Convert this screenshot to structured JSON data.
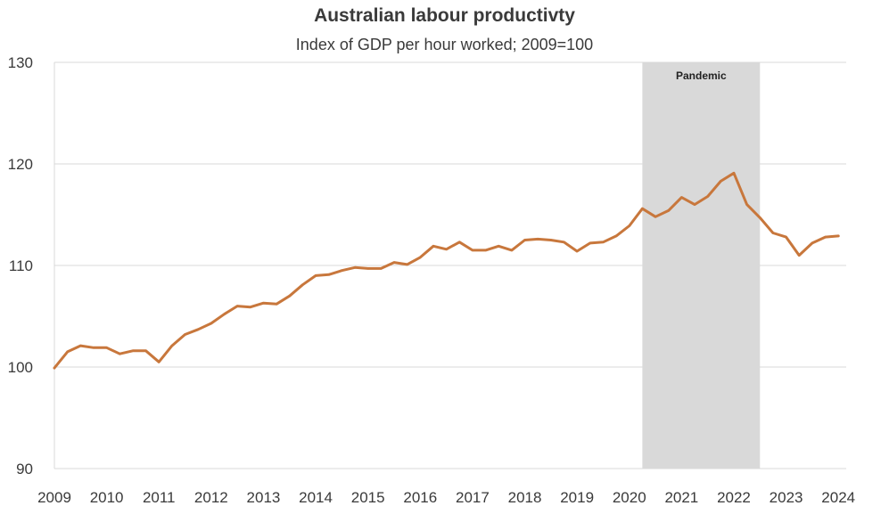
{
  "chart_data": {
    "type": "line",
    "title": "Australian labour productivty",
    "subtitle": "Index of GDP per hour worked; 2009=100",
    "xlabel": "",
    "ylabel": "",
    "ylim": [
      90,
      130
    ],
    "yticks": [
      90,
      100,
      110,
      120,
      130
    ],
    "xlim": [
      2009,
      2024.15
    ],
    "xticks": [
      "2009",
      "2010",
      "2011",
      "2012",
      "2013",
      "2014",
      "2015",
      "2016",
      "2017",
      "2018",
      "2019",
      "2020",
      "2021",
      "2022",
      "2023",
      "2024"
    ],
    "grid": true,
    "series": [
      {
        "name": "Index of GDP per hour worked",
        "color": "#c8773c",
        "x": [
          2009.0,
          2009.25,
          2009.5,
          2009.75,
          2010.0,
          2010.25,
          2010.5,
          2010.75,
          2011.0,
          2011.25,
          2011.5,
          2011.75,
          2012.0,
          2012.25,
          2012.5,
          2012.75,
          2013.0,
          2013.25,
          2013.5,
          2013.75,
          2014.0,
          2014.25,
          2014.5,
          2014.75,
          2015.0,
          2015.25,
          2015.5,
          2015.75,
          2016.0,
          2016.25,
          2016.5,
          2016.75,
          2017.0,
          2017.25,
          2017.5,
          2017.75,
          2018.0,
          2018.25,
          2018.5,
          2018.75,
          2019.0,
          2019.25,
          2019.5,
          2019.75,
          2020.0,
          2020.25,
          2020.5,
          2020.75,
          2021.0,
          2021.25,
          2021.5,
          2021.75,
          2022.0,
          2022.25,
          2022.5,
          2022.75,
          2023.0,
          2023.25,
          2023.5,
          2023.75,
          2024.0
        ],
        "values": [
          99.9,
          101.5,
          102.1,
          101.9,
          101.9,
          101.3,
          101.6,
          101.6,
          100.5,
          102.1,
          103.2,
          103.7,
          104.3,
          105.2,
          106.0,
          105.9,
          106.3,
          106.2,
          107.0,
          108.1,
          109.0,
          109.1,
          109.5,
          109.8,
          109.7,
          109.7,
          110.3,
          110.1,
          110.8,
          111.9,
          111.6,
          112.3,
          111.5,
          111.5,
          111.9,
          111.5,
          112.5,
          112.6,
          112.5,
          112.3,
          111.4,
          112.2,
          112.3,
          112.9,
          113.9,
          115.6,
          114.8,
          115.4,
          116.7,
          116.0,
          116.8,
          118.3,
          119.1,
          116.0,
          114.7,
          113.2,
          112.8,
          111.0,
          112.2,
          112.8,
          112.9
        ]
      }
    ],
    "shaded_regions": [
      {
        "label": "Pandemic",
        "x_start": 2020.25,
        "x_end": 2022.5,
        "color": "#d9d9d9"
      }
    ]
  }
}
